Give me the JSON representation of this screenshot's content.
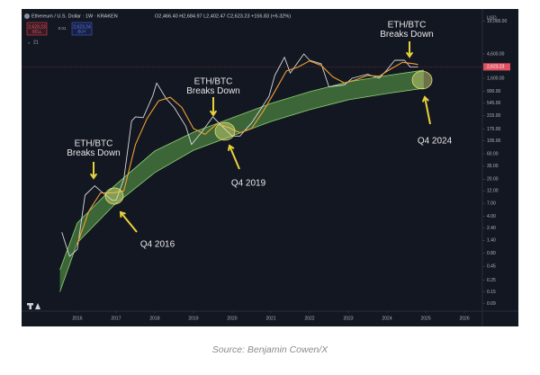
{
  "chart_data": {
    "type": "line",
    "header": {
      "symbol": "Ethereum / U.S. Dollar · 1W · KRAKEN",
      "ohlc": "O2,466.40 H2,684.97 L2,402.47 C2,623.23 +156.83 (+6.32%)",
      "sell_price": "2,623.23",
      "sell": "SELL",
      "spread": "0.01",
      "buy_price": "2,623.24",
      "buy": "BUY",
      "indicator": "21"
    },
    "y_unit": "USD",
    "current_price_label": "2,623.23",
    "log_scale": true,
    "grid": false,
    "xlim": [
      2014.56,
      2026.44
    ],
    "xticks": [
      2016,
      2017,
      2018,
      2019,
      2020,
      2021,
      2022,
      2023,
      2024,
      2025,
      2026
    ],
    "ylim": [
      0.06,
      27700
    ],
    "yticks": [
      {
        "value": 0.09,
        "label": "0.09"
      },
      {
        "value": 0.15,
        "label": "0.15"
      },
      {
        "value": 0.25,
        "label": "0.25"
      },
      {
        "value": 0.45,
        "label": "0.45"
      },
      {
        "value": 0.8,
        "label": "0.80"
      },
      {
        "value": 1.4,
        "label": "1.40"
      },
      {
        "value": 2.4,
        "label": "2.40"
      },
      {
        "value": 4,
        "label": "4.00"
      },
      {
        "value": 7,
        "label": "7.00"
      },
      {
        "value": 12,
        "label": "12.00"
      },
      {
        "value": 20,
        "label": "20.00"
      },
      {
        "value": 35,
        "label": "35.00"
      },
      {
        "value": 60,
        "label": "60.00"
      },
      {
        "value": 105,
        "label": "105.00"
      },
      {
        "value": 175,
        "label": "175.00"
      },
      {
        "value": 315,
        "label": "315.00"
      },
      {
        "value": 545,
        "label": "545.00"
      },
      {
        "value": 900,
        "label": "900.00"
      },
      {
        "value": 1600,
        "label": "1,600.00"
      },
      {
        "value": 4600,
        "label": "4,600.00"
      },
      {
        "value": 19000,
        "label": "19,000.00"
      }
    ],
    "series": [
      {
        "color": "#d8d8d8",
        "x": [
          2015.6,
          2015.8,
          2016.0,
          2016.2,
          2016.45,
          2016.6,
          2016.9,
          2017.0,
          2017.2,
          2017.4,
          2017.5,
          2017.7,
          2017.95,
          2018.05,
          2018.3,
          2018.5,
          2018.8,
          2018.95,
          2019.2,
          2019.5,
          2019.8,
          2020.0,
          2020.2,
          2020.5,
          2020.7,
          2020.95,
          2021.1,
          2021.35,
          2021.5,
          2021.85,
          2022.0,
          2022.3,
          2022.5,
          2022.9,
          2023.1,
          2023.5,
          2023.8,
          2024.0,
          2024.2,
          2024.45,
          2024.6,
          2024.75,
          2024.8
        ],
        "values": [
          2.0,
          0.7,
          0.95,
          10,
          15,
          12,
          8,
          8,
          20,
          250,
          300,
          290,
          750,
          1300,
          650,
          450,
          200,
          90,
          150,
          300,
          180,
          130,
          130,
          230,
          380,
          730,
          1800,
          4000,
          2000,
          4600,
          3500,
          3000,
          1100,
          1200,
          1600,
          1900,
          1600,
          2300,
          3500,
          3500,
          2600,
          2600,
          2623
        ]
      },
      {
        "color": "#f0a030",
        "x": [
          2016.0,
          2016.3,
          2016.6,
          2016.9,
          2017.2,
          2017.5,
          2017.8,
          2018.1,
          2018.4,
          2018.7,
          2019.0,
          2019.3,
          2019.6,
          2019.9,
          2020.2,
          2020.5,
          2020.8,
          2021.1,
          2021.4,
          2021.7,
          2022.0,
          2022.3,
          2022.6,
          2022.9,
          2023.2,
          2023.5,
          2023.8,
          2024.1,
          2024.4,
          2024.7,
          2024.8
        ],
        "values": [
          1.2,
          5,
          11,
          11,
          12,
          90,
          280,
          600,
          700,
          450,
          180,
          140,
          220,
          190,
          150,
          180,
          380,
          900,
          2200,
          2600,
          3400,
          2800,
          1700,
          1300,
          1500,
          1800,
          1750,
          2400,
          3200,
          3000,
          2900
        ]
      }
    ],
    "band": {
      "color": "#5fa84a",
      "x": [
        2015.55,
        2016.0,
        2016.95,
        2018.0,
        2019.0,
        2020.0,
        2021.0,
        2022.0,
        2023.0,
        2024.0,
        2024.95
      ],
      "upper": [
        0.39,
        3.0,
        14.8,
        68,
        154,
        287,
        536,
        890,
        1370,
        1800,
        2270
      ],
      "lower": [
        0.15,
        1.27,
        6.5,
        26.6,
        70,
        131,
        245,
        408,
        627,
        825,
        1040
      ]
    },
    "breakdown_labels": [
      [
        "ETH/BTC",
        "Breaks Down"
      ],
      [
        "ETH/BTC",
        "Breaks Down"
      ],
      [
        "ETH/BTC",
        "Breaks Down"
      ]
    ],
    "cycle_labels": [
      "Q4 2016",
      "Q4 2019",
      "Q4 2024"
    ],
    "source": "Source: Benjamin Cowen/X"
  }
}
